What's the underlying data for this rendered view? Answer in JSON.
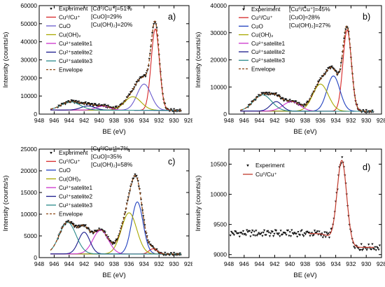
{
  "chart_data": [
    {
      "id": "a",
      "type": "line",
      "panel_label": "a)",
      "xlabel": "BE (eV)",
      "ylabel": "Intensity (counts/s)",
      "xlim": [
        948,
        928
      ],
      "ylim": [
        0,
        60000
      ],
      "xticks": [
        948,
        946,
        944,
        942,
        940,
        938,
        936,
        934,
        932,
        930,
        928
      ],
      "yticks": [
        0,
        10000,
        20000,
        30000,
        40000,
        50000,
        60000
      ],
      "annotations": [
        "[Cu⁰/Cu⁺]=51%",
        "[CuO]=29%",
        "[Cu(OH)₂]=20%"
      ],
      "legend": [
        "Experiment",
        "Cu⁰/Cu⁺",
        "CuO",
        "Cu(OH)₂",
        "Cu²⁺satelite1",
        "Cu²⁺satelite2",
        "Cu²⁺satelite3",
        "Envelope"
      ],
      "colors": {
        "Cu0Cu1": "#d62728",
        "CuO": "#6a5acd",
        "CuOH2": "#a8a800",
        "sat1": "#cc33cc",
        "sat2": "#1a1a8c",
        "sat3": "#2a8a8a",
        "envelope": "#8b4513",
        "experiment": "#111111"
      },
      "series": [
        {
          "key": "Cu0Cu1",
          "name": "Cu⁰/Cu⁺",
          "center": 932.5,
          "amplitude": 45000,
          "fwhm": 1.3
        },
        {
          "key": "CuO",
          "name": "CuO",
          "center": 934.0,
          "amplitude": 14500,
          "fwhm": 2.2
        },
        {
          "key": "CuOH2",
          "name": "Cu(OH)₂",
          "center": 935.5,
          "amplitude": 7500,
          "fwhm": 2.6
        },
        {
          "key": "sat1",
          "name": "Cu²⁺satelite1",
          "center": 939.5,
          "amplitude": 2200,
          "fwhm": 2.2
        },
        {
          "key": "sat2",
          "name": "Cu²⁺satelite2",
          "center": 941.5,
          "amplitude": 2300,
          "fwhm": 2.2
        },
        {
          "key": "sat3",
          "name": "Cu²⁺satelite3",
          "center": 943.8,
          "amplitude": 4500,
          "fwhm": 3.0
        }
      ],
      "baseline": 2000,
      "baseline_slope": 300
    },
    {
      "id": "b",
      "type": "line",
      "panel_label": "b)",
      "xlabel": "BE (eV)",
      "ylabel": "Intensity (counts/s)",
      "xlim": [
        948,
        928
      ],
      "ylim": [
        0,
        40000
      ],
      "xticks": [
        948,
        946,
        944,
        942,
        940,
        938,
        936,
        934,
        932,
        930,
        928
      ],
      "yticks": [
        0,
        10000,
        20000,
        30000,
        40000
      ],
      "annotations": [
        "[Cu⁰/Cu⁺]=45%",
        "[CuO]=28%",
        "[Cu(OH)₂]=27%"
      ],
      "legend": [
        "Experiment",
        "Cu⁰/Cu⁺",
        "CuO",
        "Cu(OH)₂",
        "Cu²⁺satelite1",
        "Cu²⁺satelite2",
        "Cu²⁺satelite3",
        "Envelope"
      ],
      "colors": {
        "Cu0Cu1": "#d62728",
        "CuO": "#1f3fbf",
        "CuOH2": "#a8a800",
        "sat1": "#cc33cc",
        "sat2": "#1a1a8c",
        "sat3": "#2a8a8a",
        "envelope": "#8b4513",
        "experiment": "#111111"
      },
      "series": [
        {
          "key": "Cu0Cu1",
          "name": "Cu⁰/Cu⁺",
          "center": 932.5,
          "amplitude": 30000,
          "fwhm": 1.3
        },
        {
          "key": "CuO",
          "name": "CuO",
          "center": 934.3,
          "amplitude": 13000,
          "fwhm": 2.0
        },
        {
          "key": "CuOH2",
          "name": "Cu(OH)₂",
          "center": 936.0,
          "amplitude": 10000,
          "fwhm": 2.4
        },
        {
          "key": "sat1",
          "name": "Cu²⁺satelite1",
          "center": 939.8,
          "amplitude": 3500,
          "fwhm": 2.6
        },
        {
          "key": "sat2",
          "name": "Cu²⁺satelite2",
          "center": 941.8,
          "amplitude": 3500,
          "fwhm": 1.8
        },
        {
          "key": "sat3",
          "name": "Cu²⁺satelite3",
          "center": 943.6,
          "amplitude": 6000,
          "fwhm": 2.8
        }
      ],
      "baseline": 1000,
      "baseline_slope": 150
    },
    {
      "id": "c",
      "type": "line",
      "panel_label": "c)",
      "xlabel": "BE (eV)",
      "ylabel": "Intensity (counts/s)",
      "xlim": [
        948,
        928
      ],
      "ylim": [
        0,
        25000
      ],
      "xticks": [
        948,
        946,
        944,
        942,
        940,
        938,
        936,
        934,
        932,
        930,
        928
      ],
      "yticks": [
        0,
        5000,
        10000,
        15000,
        20000,
        25000
      ],
      "annotations": [
        "[Cu⁰/Cu⁺]=7%",
        "[CuO]=35%",
        "[Cu(OH)₂]=58%"
      ],
      "legend": [
        "Experiment",
        "Cu⁰/Cu⁺",
        "CuO",
        "Cu(OH)₂",
        "Cu²⁺satelite1",
        "Cu²⁺satelite2",
        "Cu²⁺satelite3",
        "Envelope"
      ],
      "colors": {
        "Cu0Cu1": "#d62728",
        "CuO": "#1f3fbf",
        "CuOH2": "#a8a800",
        "sat1": "#cc33cc",
        "sat2": "#1a1a8c",
        "sat3": "#2a8a8a",
        "envelope": "#8b4513",
        "experiment": "#111111"
      },
      "series": [
        {
          "key": "Cu0Cu1",
          "name": "Cu⁰/Cu⁺",
          "center": 932.8,
          "amplitude": 1200,
          "fwhm": 1.3
        },
        {
          "key": "CuO",
          "name": "CuO",
          "center": 934.9,
          "amplitude": 12000,
          "fwhm": 1.8
        },
        {
          "key": "CuOH2",
          "name": "Cu(OH)₂",
          "center": 936.0,
          "amplitude": 9500,
          "fwhm": 2.4
        },
        {
          "key": "sat1",
          "name": "Cu²⁺satelite1",
          "center": 939.8,
          "amplitude": 5500,
          "fwhm": 2.4
        },
        {
          "key": "sat2",
          "name": "Cu²⁺satelite2",
          "center": 942.0,
          "amplitude": 5000,
          "fwhm": 1.8
        },
        {
          "key": "sat3",
          "name": "Cu²⁺satelite3",
          "center": 944.2,
          "amplitude": 7300,
          "fwhm": 2.6
        }
      ],
      "baseline": 800,
      "baseline_slope": 60
    },
    {
      "id": "d",
      "type": "line",
      "panel_label": "d)",
      "xlabel": "BE (eV)",
      "ylabel": "Intensity (counts/s)",
      "xlim": [
        948,
        928
      ],
      "ylim": [
        8950,
        10750
      ],
      "xticks": [
        948,
        946,
        944,
        942,
        940,
        938,
        936,
        934,
        932,
        930,
        928
      ],
      "yticks": [
        9000,
        9500,
        10000,
        10500
      ],
      "annotations": [],
      "legend": [
        "Experiment",
        "Cu⁰/Cu⁺"
      ],
      "colors": {
        "Cu0Cu1": "#c0392b",
        "experiment": "#111111"
      },
      "series": [
        {
          "key": "Cu0Cu1",
          "name": "Cu⁰/Cu⁺",
          "center": 933.2,
          "amplitude": 1430,
          "fwhm": 1.5
        }
      ],
      "baseline_left": 9350,
      "baseline_right": 9120
    }
  ]
}
